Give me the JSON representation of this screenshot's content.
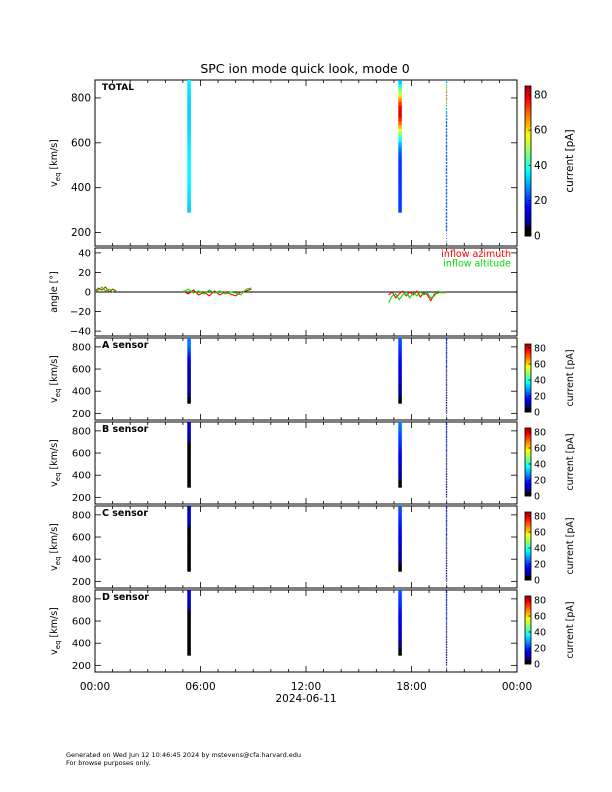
{
  "title": "SPC ion mode quick look, mode 0",
  "x_axis": {
    "ticks": [
      "00:00",
      "06:00",
      "12:00",
      "18:00",
      "00:00"
    ],
    "tick_hours": [
      0,
      6,
      12,
      18,
      24
    ],
    "date_label": "2024-06-11"
  },
  "colorbar": {
    "label": "current [pA]",
    "range": [
      0,
      85
    ],
    "large_ticks": [
      "0",
      "20",
      "40",
      "60",
      "80"
    ],
    "small_ticks": [
      "0",
      "20",
      "40",
      "60",
      "80"
    ]
  },
  "footer": {
    "line1": "Generated on Wed Jun 12 10:46:45 2024 by mstevens@cfa.harvard.edu",
    "line2": "For browse purposes only."
  },
  "panels": [
    {
      "label": "TOTAL",
      "ylabel": "v_eq [km/s]",
      "y_ticks": [
        "200",
        "400",
        "600",
        "800"
      ],
      "y_tick_values": [
        200,
        400,
        600,
        800
      ],
      "ylim": [
        140,
        880
      ]
    },
    {
      "ylabel": "angle [°]",
      "y_ticks": [
        "40",
        "20",
        "0",
        "−20",
        "−40"
      ],
      "y_tick_values": [
        40,
        20,
        0,
        -20,
        -40
      ],
      "ylim": [
        -45,
        45
      ],
      "legend": [
        {
          "name": "inflow azimuth",
          "color": "#ff0000"
        },
        {
          "name": "inflow altitude",
          "color": "#00dd00"
        }
      ]
    },
    {
      "label": "A sensor",
      "ylabel": "v_eq [km/s]",
      "y_ticks": [
        "200",
        "400",
        "600",
        "800"
      ],
      "y_tick_values": [
        200,
        400,
        600,
        800
      ],
      "ylim": [
        140,
        880
      ]
    },
    {
      "label": "B sensor",
      "ylabel": "v_eq [km/s]",
      "y_ticks": [
        "200",
        "400",
        "600",
        "800"
      ],
      "y_tick_values": [
        200,
        400,
        600,
        800
      ],
      "ylim": [
        140,
        880
      ]
    },
    {
      "label": "C sensor",
      "ylabel": "v_eq [km/s]",
      "y_ticks": [
        "200",
        "400",
        "600",
        "800"
      ],
      "y_tick_values": [
        200,
        400,
        600,
        800
      ],
      "ylim": [
        140,
        880
      ]
    },
    {
      "label": "D sensor",
      "ylabel": "v_eq [km/s]",
      "y_ticks": [
        "200",
        "400",
        "600",
        "800"
      ],
      "y_tick_values": [
        200,
        400,
        600,
        800
      ],
      "ylim": [
        140,
        880
      ]
    }
  ],
  "chart_data": {
    "type": "heatmap",
    "x_unit": "hours since 2024-06-11 00:00",
    "xlim": [
      0,
      24
    ],
    "spectrogram_columns": [
      {
        "x_start": 5.25,
        "x_end": 5.45,
        "v_min": 290,
        "v_max": 880
      },
      {
        "x_start": 17.25,
        "x_end": 17.45,
        "v_min": 290,
        "v_max": 880
      },
      {
        "x_start": 19.95,
        "x_end": 20.05,
        "v_min": 200,
        "v_max": 880
      }
    ],
    "series": [
      {
        "name": "inflow azimuth",
        "color": "#ff0000",
        "points": [
          [
            0.0,
            1
          ],
          [
            0.2,
            4
          ],
          [
            0.4,
            2
          ],
          [
            0.6,
            5
          ],
          [
            0.8,
            0
          ],
          [
            1.0,
            3
          ],
          [
            1.2,
            1
          ],
          [
            5.0,
            1
          ],
          [
            5.3,
            -2
          ],
          [
            5.6,
            2
          ],
          [
            5.9,
            -3
          ],
          [
            6.2,
            0
          ],
          [
            6.5,
            -4
          ],
          [
            6.8,
            1
          ],
          [
            7.1,
            -3
          ],
          [
            7.4,
            0
          ],
          [
            7.7,
            -2
          ],
          [
            8.0,
            -4
          ],
          [
            8.3,
            0
          ],
          [
            8.6,
            1
          ],
          [
            8.9,
            3
          ],
          [
            16.7,
            -3
          ],
          [
            16.9,
            0
          ],
          [
            17.1,
            -6
          ],
          [
            17.3,
            -2
          ],
          [
            17.5,
            1
          ],
          [
            17.7,
            -4
          ],
          [
            17.9,
            0
          ],
          [
            18.1,
            -3
          ],
          [
            18.3,
            1
          ],
          [
            18.5,
            -5
          ],
          [
            18.7,
            -1
          ],
          [
            18.9,
            -3
          ],
          [
            19.1,
            -9
          ],
          [
            19.3,
            -2
          ],
          [
            19.5,
            -1
          ],
          [
            19.7,
            0
          ],
          [
            19.9,
            -1
          ]
        ]
      },
      {
        "name": "inflow altitude",
        "color": "#00dd00",
        "points": [
          [
            0.0,
            0
          ],
          [
            0.2,
            2
          ],
          [
            0.4,
            5
          ],
          [
            0.6,
            1
          ],
          [
            0.8,
            3
          ],
          [
            1.0,
            0
          ],
          [
            1.2,
            2
          ],
          [
            5.0,
            0
          ],
          [
            5.3,
            3
          ],
          [
            5.6,
            -1
          ],
          [
            5.9,
            1
          ],
          [
            6.2,
            -2
          ],
          [
            6.5,
            2
          ],
          [
            6.8,
            -1
          ],
          [
            7.1,
            1
          ],
          [
            7.4,
            -2
          ],
          [
            7.7,
            0
          ],
          [
            8.0,
            -1
          ],
          [
            8.3,
            -3
          ],
          [
            8.6,
            3
          ],
          [
            8.9,
            4
          ],
          [
            16.7,
            -11
          ],
          [
            16.9,
            -4
          ],
          [
            17.1,
            -2
          ],
          [
            17.3,
            -8
          ],
          [
            17.5,
            -3
          ],
          [
            17.7,
            0
          ],
          [
            17.9,
            -6
          ],
          [
            18.1,
            -1
          ],
          [
            18.3,
            -4
          ],
          [
            18.5,
            0
          ],
          [
            18.7,
            -3
          ],
          [
            18.9,
            -1
          ],
          [
            19.1,
            -6
          ],
          [
            19.3,
            -4
          ],
          [
            19.5,
            1
          ],
          [
            19.7,
            -1
          ],
          [
            19.9,
            0
          ]
        ]
      }
    ]
  }
}
